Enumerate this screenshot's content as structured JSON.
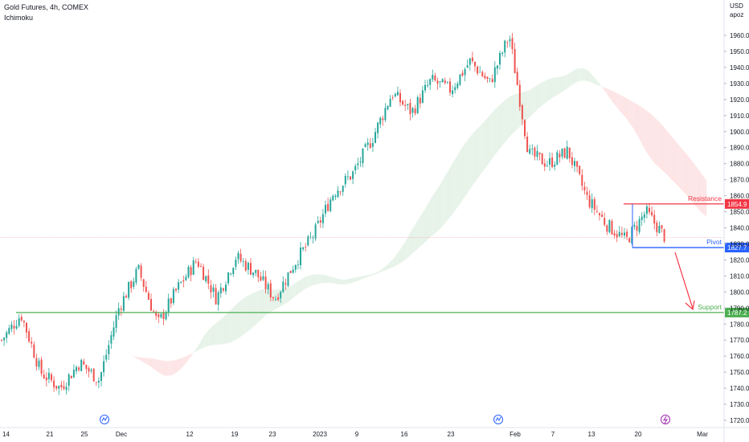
{
  "header": {
    "symbol_line": "Gold Futures, 4h, COMEX",
    "indicator": "Ichimoku"
  },
  "price_axis": {
    "currency": "USD",
    "mode": "apoz"
  },
  "chart_data": {
    "type": "candlestick",
    "title": "Gold Futures, 4h, COMEX",
    "indicator": "Ichimoku",
    "y_range": [
      1717,
      2000
    ],
    "y_ticks": [
      1720,
      1730,
      1740,
      1750,
      1760,
      1770,
      1780,
      1790,
      1800,
      1810,
      1820,
      1830,
      1840,
      1850,
      1860,
      1870,
      1880,
      1890,
      1900,
      1910,
      1920,
      1930,
      1940,
      1950,
      1960
    ],
    "x_tick_labels": [
      "14",
      "21",
      "25",
      "Dec",
      "12",
      "19",
      "23",
      "2023",
      "9",
      "16",
      "23",
      "Feb",
      "7",
      "13",
      "20",
      "Mar"
    ],
    "price_path": [
      {
        "label": "14",
        "price": 1770
      },
      {
        "label": "",
        "price": 1786
      },
      {
        "label": "21",
        "price": 1750
      },
      {
        "label": "",
        "price": 1740
      },
      {
        "label": "25",
        "price": 1756
      },
      {
        "label": "",
        "price": 1745
      },
      {
        "label": "Dec",
        "price": 1790
      },
      {
        "label": "",
        "price": 1814
      },
      {
        "label": "",
        "price": 1780
      },
      {
        "label": "12",
        "price": 1802
      },
      {
        "label": "",
        "price": 1820
      },
      {
        "label": "19",
        "price": 1796
      },
      {
        "label": "",
        "price": 1822
      },
      {
        "label": "23",
        "price": 1812
      },
      {
        "label": "",
        "price": 1796
      },
      {
        "label": "",
        "price": 1818
      },
      {
        "label": "2023",
        "price": 1836
      },
      {
        "label": "",
        "price": 1862
      },
      {
        "label": "9",
        "price": 1874
      },
      {
        "label": "",
        "price": 1896
      },
      {
        "label": "16",
        "price": 1924
      },
      {
        "label": "",
        "price": 1912
      },
      {
        "label": "23",
        "price": 1932
      },
      {
        "label": "",
        "price": 1926
      },
      {
        "label": "",
        "price": 1944
      },
      {
        "label": "",
        "price": 1930
      },
      {
        "label": "Feb",
        "price": 1960
      },
      {
        "label": "",
        "price": 1886
      },
      {
        "label": "7",
        "price": 1880
      },
      {
        "label": "",
        "price": 1888
      },
      {
        "label": "13",
        "price": 1858
      },
      {
        "label": "",
        "price": 1842
      },
      {
        "label": "20",
        "price": 1832
      },
      {
        "label": "",
        "price": 1850
      },
      {
        "label": "",
        "price": 1834
      }
    ],
    "levels": [
      {
        "name": "Resistance",
        "value": 1854.9,
        "value_label": "1854.9",
        "color": "#f23645"
      },
      {
        "name": "Pivot",
        "value": 1827.7,
        "value_label": "1827.7",
        "color": "#2962ff"
      },
      {
        "name": "Support",
        "value": 1787.2,
        "value_label": "1787.2",
        "color": "#4caf50"
      }
    ],
    "annotation": "Arrow pointing down from the pivot toward support",
    "colors": {
      "up": "#26a69a",
      "down": "#ef5350",
      "cloud_bull": "#e7f3e9",
      "cloud_bear": "#fde5e6"
    },
    "grid": false
  }
}
